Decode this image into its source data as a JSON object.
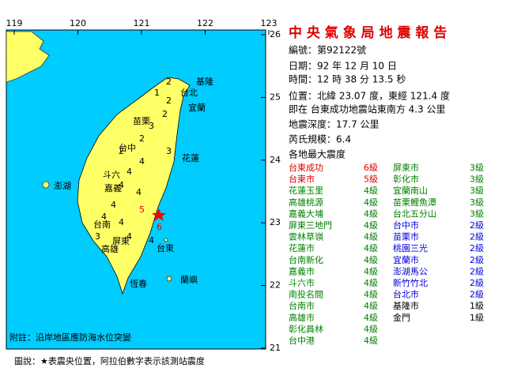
{
  "header": {
    "title": "中 央 氣 象 局 地 震 報 告"
  },
  "report": {
    "lines": [
      "編號：第92122號",
      "日期：92 年 12 月 10 日",
      "時間：12 時 38 分 13.5 秒",
      "位置：北緯 23.07 度，東經 121.4 度",
      "即在 台東成功地震站東南方 4.3 公里",
      "地震深度：17.7 公里",
      "芮氏規模：6.4"
    ],
    "intensity_heading": "各地最大震度",
    "left_stations": [
      {
        "name": "台東成功",
        "level": "6級",
        "color": "#e00000"
      },
      {
        "name": "台東市",
        "level": "5級",
        "color": "#e00000"
      },
      {
        "name": "花蓮玉里",
        "level": "4級",
        "color": "#008000"
      },
      {
        "name": "高雄桃源",
        "level": "4級",
        "color": "#008000"
      },
      {
        "name": "嘉義大埔",
        "level": "4級",
        "color": "#008000"
      },
      {
        "name": "屏東三地門",
        "level": "4級",
        "color": "#008000"
      },
      {
        "name": "雲林草嶺",
        "level": "4級",
        "color": "#008000"
      },
      {
        "name": "花蓮市",
        "level": "4級",
        "color": "#008000"
      },
      {
        "name": "台南新化",
        "level": "4級",
        "color": "#008000"
      },
      {
        "name": "嘉義市",
        "level": "4級",
        "color": "#008000"
      },
      {
        "name": "斗六市",
        "level": "4級",
        "color": "#008000"
      },
      {
        "name": "南投名間",
        "level": "4級",
        "color": "#008000"
      },
      {
        "name": "台南市",
        "level": "4級",
        "color": "#008000"
      },
      {
        "name": "高雄市",
        "level": "4級",
        "color": "#008000"
      },
      {
        "name": "彰化員林",
        "level": "4級",
        "color": "#008000"
      },
      {
        "name": "台中港",
        "level": "4級",
        "color": "#008000"
      }
    ],
    "right_stations": [
      {
        "name": "屏東市",
        "level": "3級",
        "color": "#008000"
      },
      {
        "name": "彰化市",
        "level": "3級",
        "color": "#008000"
      },
      {
        "name": "宜蘭南山",
        "level": "3級",
        "color": "#008000"
      },
      {
        "name": "苗栗鯉魚潭",
        "level": "3級",
        "color": "#008000"
      },
      {
        "name": "台北五分山",
        "level": "3級",
        "color": "#008000"
      },
      {
        "name": "台中市",
        "level": "2級",
        "color": "#0000e0"
      },
      {
        "name": "苗栗市",
        "level": "2級",
        "color": "#0000e0"
      },
      {
        "name": "桃園三光",
        "level": "2級",
        "color": "#0000e0"
      },
      {
        "name": "宜蘭市",
        "level": "2級",
        "color": "#0000e0"
      },
      {
        "name": "澎湖馬公",
        "level": "2級",
        "color": "#0000e0"
      },
      {
        "name": "新竹竹北",
        "level": "2級",
        "color": "#0000e0"
      },
      {
        "name": "台北市",
        "level": "2級",
        "color": "#0000e0"
      },
      {
        "name": "基隆市",
        "level": "1級",
        "color": "#000000"
      },
      {
        "name": "金門",
        "level": "1級",
        "color": "#000000"
      }
    ]
  },
  "map": {
    "lon_ticks": [
      119,
      120,
      121,
      122,
      123
    ],
    "lat_ticks": [
      26,
      25,
      24,
      23,
      22,
      21
    ],
    "places": [
      "基隆",
      "台北",
      "宜蘭",
      "苗栗",
      "台中",
      "花蓮",
      "斗六",
      "嘉義",
      "台南",
      "高雄",
      "屏東",
      "台東",
      "恆春",
      "蘭嶼",
      "澎湖"
    ],
    "station_digits": [
      "2",
      "1",
      "2",
      "2",
      "3",
      "2",
      "2",
      "3",
      "4",
      "4",
      "4",
      "4",
      "4",
      "4",
      "4",
      "4",
      "4",
      "3",
      "5",
      "6"
    ],
    "note": "附註：沿岸地區應防海水位突變"
  },
  "footer": {
    "legend": "圖說：★表震央位置，阿拉伯數字表示該測站震度"
  }
}
